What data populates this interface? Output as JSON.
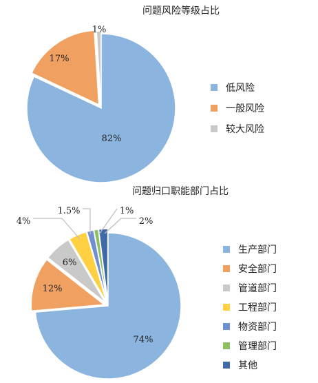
{
  "chart_data": [
    {
      "type": "pie",
      "title": "问题风险等级占比",
      "categories": [
        "低风险",
        "一般风险",
        "较大风险"
      ],
      "values": [
        82,
        17,
        1
      ],
      "labels": [
        "82%",
        "17%",
        "1%"
      ],
      "colors": [
        "#8bb4de",
        "#f0a060",
        "#c9c9c9"
      ],
      "legend": "right",
      "start": "top, clockwise"
    },
    {
      "type": "pie",
      "title": "问题归口职能部门占比",
      "categories": [
        "生产部门",
        "安全部门",
        "管道部门",
        "工程部门",
        "物资部门",
        "管理部门",
        "其他"
      ],
      "values": [
        74,
        12,
        6,
        4,
        1.5,
        1,
        2
      ],
      "labels": [
        "74%",
        "12%",
        "6%",
        "4%",
        "1.5%",
        "1%",
        "2%"
      ],
      "colors": [
        "#8bb4de",
        "#f0a060",
        "#c9c9c9",
        "#ffd042",
        "#6f8fcf",
        "#8cc063",
        "#3f6aa6"
      ],
      "legend": "right",
      "start": "top, clockwise"
    }
  ]
}
